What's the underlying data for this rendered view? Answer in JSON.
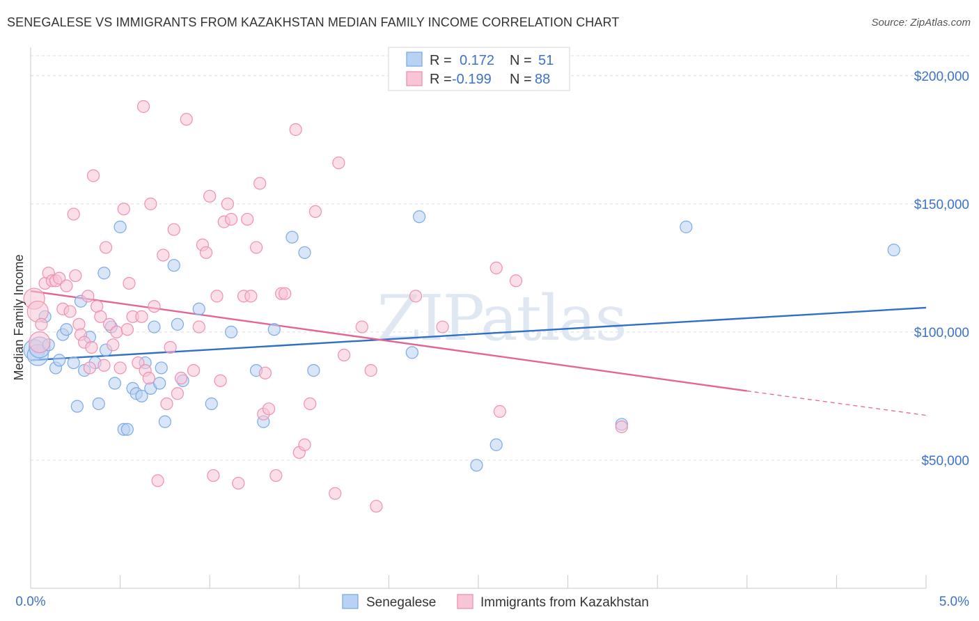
{
  "chart_data": {
    "type": "scatter",
    "title": "SENEGALESE VS IMMIGRANTS FROM KAZAKHSTAN MEDIAN FAMILY INCOME CORRELATION CHART",
    "source": "Source: ZipAtlas.com",
    "ylabel": "Median Family Income",
    "xlim": [
      0,
      5
    ],
    "ylim": [
      0,
      210000
    ],
    "x_tick_labels": [
      "0.0%",
      "5.0%"
    ],
    "y_ticks": [
      50000,
      100000,
      150000,
      200000
    ],
    "y_tick_labels": [
      "$50,000",
      "$100,000",
      "$150,000",
      "$200,000"
    ],
    "watermark": "ZIPatlas",
    "legend": {
      "r_label": "R =",
      "n_label": "N =",
      "entries": [
        {
          "r": "0.172",
          "n": "51"
        },
        {
          "r": "-0.199",
          "n": "88"
        }
      ]
    },
    "series": [
      {
        "name": "Senegalese",
        "color": "#7aaae6",
        "fill": "#b9d1f3",
        "line_color": "#2f6fc8",
        "trend": {
          "x0": 0.0,
          "y0": 89000,
          "x1": 5.0,
          "y1": 109500
        },
        "points": [
          [
            0.02,
            93000
          ],
          [
            0.04,
            91000
          ],
          [
            0.05,
            94000
          ],
          [
            0.08,
            106000
          ],
          [
            0.1,
            95000
          ],
          [
            0.14,
            86000
          ],
          [
            0.16,
            89000
          ],
          [
            0.18,
            99000
          ],
          [
            0.2,
            101000
          ],
          [
            0.24,
            88000
          ],
          [
            0.26,
            71000
          ],
          [
            0.28,
            112000
          ],
          [
            0.3,
            85000
          ],
          [
            0.33,
            98000
          ],
          [
            0.36,
            88000
          ],
          [
            0.38,
            72000
          ],
          [
            0.41,
            123000
          ],
          [
            0.42,
            93000
          ],
          [
            0.45,
            102000
          ],
          [
            0.47,
            80000
          ],
          [
            0.5,
            141000
          ],
          [
            0.52,
            62000
          ],
          [
            0.54,
            62000
          ],
          [
            0.57,
            78000
          ],
          [
            0.59,
            76000
          ],
          [
            0.62,
            75000
          ],
          [
            0.64,
            88000
          ],
          [
            0.67,
            78000
          ],
          [
            0.69,
            102000
          ],
          [
            0.72,
            80000
          ],
          [
            0.73,
            86000
          ],
          [
            0.75,
            65000
          ],
          [
            0.8,
            126000
          ],
          [
            0.82,
            103000
          ],
          [
            0.85,
            81000
          ],
          [
            0.94,
            109000
          ],
          [
            1.01,
            72000
          ],
          [
            1.12,
            100000
          ],
          [
            1.26,
            85000
          ],
          [
            1.3,
            65000
          ],
          [
            1.36,
            101000
          ],
          [
            1.46,
            137000
          ],
          [
            1.53,
            131000
          ],
          [
            1.58,
            85000
          ],
          [
            2.13,
            92000
          ],
          [
            2.17,
            145000
          ],
          [
            2.49,
            48000
          ],
          [
            2.6,
            56000
          ],
          [
            3.3,
            64000
          ],
          [
            3.66,
            141000
          ],
          [
            4.82,
            132000
          ]
        ]
      },
      {
        "name": "Immigrants from Kazakhstan",
        "color": "#f08fb0",
        "fill": "#f8c5d6",
        "line_color": "#e46595",
        "trend": {
          "x0": 0.0,
          "y0": 116000,
          "x1": 4.0,
          "y1": 77000
        },
        "trend_dashed": {
          "x0": 4.0,
          "y0": 77000,
          "x1": 5.0,
          "y1": 67500
        },
        "points": [
          [
            0.02,
            113000
          ],
          [
            0.04,
            108000
          ],
          [
            0.06,
            103000
          ],
          [
            0.08,
            119000
          ],
          [
            0.1,
            123000
          ],
          [
            0.12,
            120000
          ],
          [
            0.14,
            120000
          ],
          [
            0.16,
            121000
          ],
          [
            0.18,
            109000
          ],
          [
            0.2,
            118000
          ],
          [
            0.22,
            108000
          ],
          [
            0.24,
            146000
          ],
          [
            0.25,
            122000
          ],
          [
            0.27,
            103000
          ],
          [
            0.28,
            99000
          ],
          [
            0.3,
            96000
          ],
          [
            0.32,
            114000
          ],
          [
            0.34,
            94000
          ],
          [
            0.35,
            161000
          ],
          [
            0.37,
            110000
          ],
          [
            0.39,
            106000
          ],
          [
            0.41,
            87000
          ],
          [
            0.42,
            133000
          ],
          [
            0.44,
            103000
          ],
          [
            0.46,
            95000
          ],
          [
            0.48,
            100000
          ],
          [
            0.5,
            86000
          ],
          [
            0.52,
            148000
          ],
          [
            0.54,
            101000
          ],
          [
            0.55,
            119000
          ],
          [
            0.57,
            106000
          ],
          [
            0.6,
            88000
          ],
          [
            0.62,
            106000
          ],
          [
            0.64,
            85000
          ],
          [
            0.66,
            82000
          ],
          [
            0.63,
            188000
          ],
          [
            0.67,
            150000
          ],
          [
            0.69,
            110000
          ],
          [
            0.71,
            42000
          ],
          [
            0.74,
            130000
          ],
          [
            0.76,
            72000
          ],
          [
            0.78,
            94000
          ],
          [
            0.8,
            140000
          ],
          [
            0.82,
            76000
          ],
          [
            0.84,
            82000
          ],
          [
            0.87,
            183000
          ],
          [
            0.91,
            85000
          ],
          [
            0.94,
            102000
          ],
          [
            0.96,
            134000
          ],
          [
            0.98,
            131000
          ],
          [
            1.0,
            153000
          ],
          [
            1.02,
            44000
          ],
          [
            1.04,
            114000
          ],
          [
            1.06,
            81000
          ],
          [
            1.08,
            143000
          ],
          [
            1.1,
            150000
          ],
          [
            1.12,
            144000
          ],
          [
            1.16,
            41000
          ],
          [
            1.19,
            114000
          ],
          [
            1.21,
            144000
          ],
          [
            1.23,
            114000
          ],
          [
            1.26,
            133000
          ],
          [
            1.28,
            158000
          ],
          [
            1.3,
            68000
          ],
          [
            1.31,
            84000
          ],
          [
            1.33,
            70000
          ],
          [
            1.37,
            44000
          ],
          [
            1.4,
            115000
          ],
          [
            1.42,
            115000
          ],
          [
            1.48,
            179000
          ],
          [
            1.5,
            53000
          ],
          [
            1.53,
            56000
          ],
          [
            1.56,
            72000
          ],
          [
            1.59,
            147000
          ],
          [
            1.7,
            37000
          ],
          [
            1.72,
            166000
          ],
          [
            1.75,
            91000
          ],
          [
            1.85,
            102000
          ],
          [
            1.9,
            85000
          ],
          [
            1.93,
            32000
          ],
          [
            2.15,
            114000
          ],
          [
            2.3,
            102000
          ],
          [
            2.6,
            125000
          ],
          [
            2.62,
            69000
          ],
          [
            2.71,
            120000
          ],
          [
            3.3,
            63000
          ],
          [
            0.05,
            96000
          ],
          [
            0.33,
            86000
          ]
        ]
      }
    ]
  }
}
